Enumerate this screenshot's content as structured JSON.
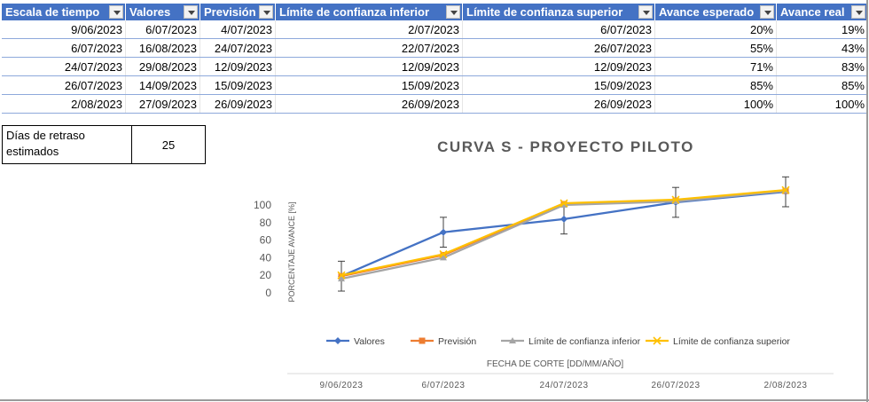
{
  "table": {
    "headers": [
      "Escala de tiempo",
      "Valores",
      "Previsión",
      "Límite de confianza inferior",
      "Límite de confianza superior",
      "Avance esperado",
      "Avance real"
    ],
    "rows": [
      [
        "9/06/2023",
        "6/07/2023",
        "4/07/2023",
        "2/07/2023",
        "6/07/2023",
        "20%",
        "19%"
      ],
      [
        "6/07/2023",
        "16/08/2023",
        "24/07/2023",
        "22/07/2023",
        "26/07/2023",
        "55%",
        "43%"
      ],
      [
        "24/07/2023",
        "29/08/2023",
        "12/09/2023",
        "12/09/2023",
        "12/09/2023",
        "71%",
        "83%"
      ],
      [
        "26/07/2023",
        "14/09/2023",
        "15/09/2023",
        "15/09/2023",
        "15/09/2023",
        "85%",
        "85%"
      ],
      [
        "2/08/2023",
        "27/09/2023",
        "26/09/2023",
        "26/09/2023",
        "26/09/2023",
        "100%",
        "100%"
      ]
    ]
  },
  "retraso": {
    "label": "Días de retraso estimados",
    "value": "25"
  },
  "chart_data": {
    "type": "line",
    "title": "CURVA S - PROYECTO PILOTO",
    "xlabel": "FECHA DE CORTE [DD/MM/AÑO]",
    "ylabel": "PORCENTAJE AVANCE [%]",
    "categories": [
      "9/06/2023",
      "6/07/2023",
      "24/07/2023",
      "26/07/2023",
      "2/08/2023"
    ],
    "yticks": [
      0,
      20,
      40,
      60,
      80,
      100
    ],
    "ylim": [
      0,
      100
    ],
    "grid": false,
    "legend": "bottom",
    "series": [
      {
        "name": "Valores",
        "values": [
          19,
          69,
          84,
          103,
          115
        ],
        "color": "#4472c4",
        "marker": "diamond"
      },
      {
        "name": "Previsión",
        "values": [
          19,
          43,
          101,
          105,
          116
        ],
        "color": "#ed7d31",
        "marker": "square"
      },
      {
        "name": "Límite de confianza inferior",
        "values": [
          16,
          40,
          100,
          104,
          116
        ],
        "color": "#a5a5a5",
        "marker": "triangle"
      },
      {
        "name": "Límite de confianza superior",
        "values": [
          20,
          44,
          102,
          106,
          117
        ],
        "color": "#ffc000",
        "marker": "x"
      }
    ],
    "error_bars": {
      "series": "Valores",
      "plus": [
        17,
        17,
        17,
        17,
        17
      ],
      "minus": [
        17,
        17,
        17,
        17,
        17
      ]
    }
  }
}
